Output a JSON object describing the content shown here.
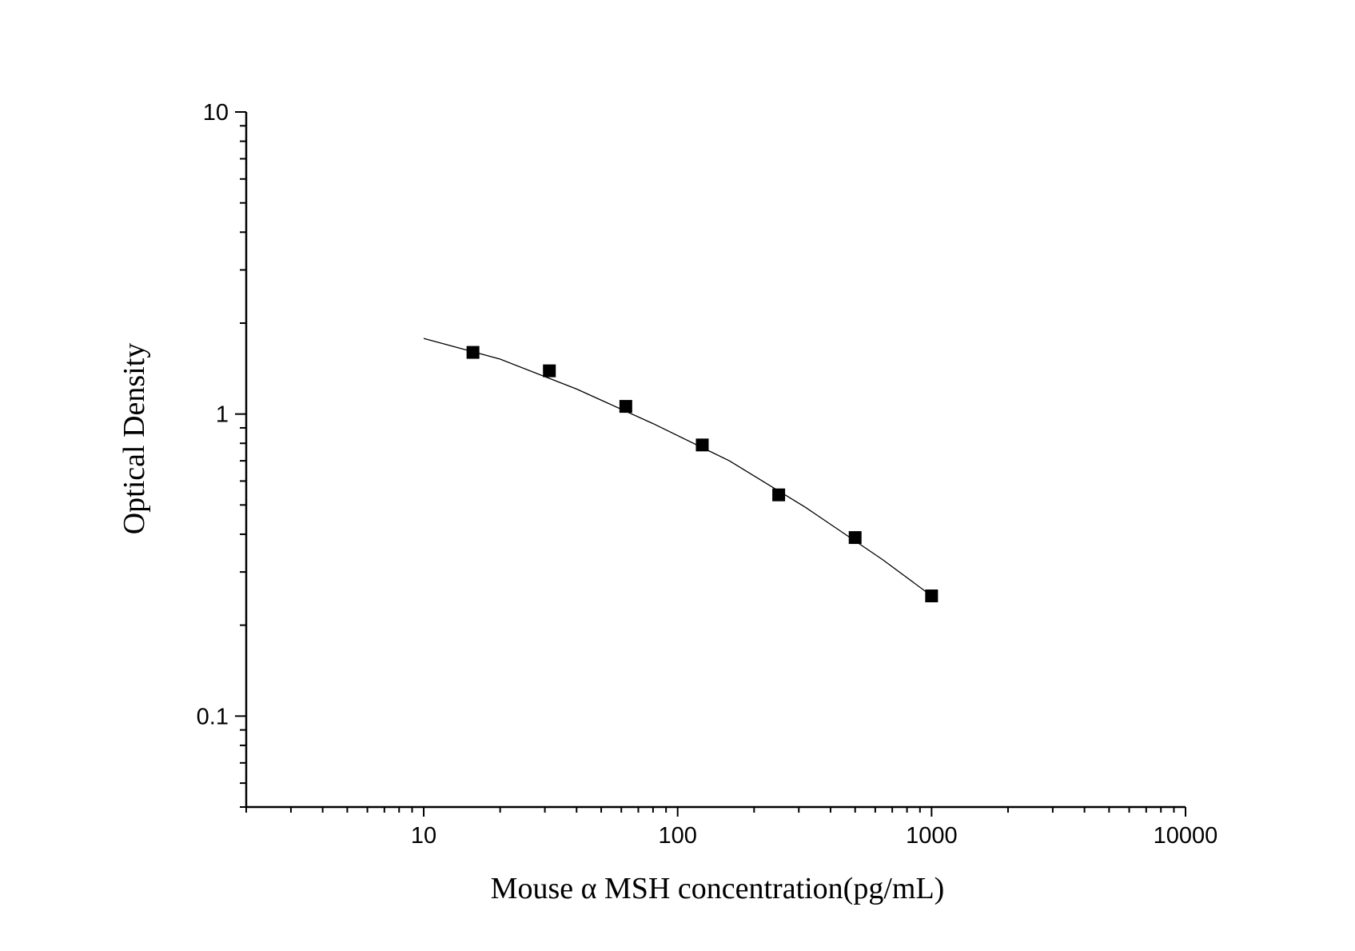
{
  "chart_data": {
    "type": "scatter",
    "x_scale": "log",
    "y_scale": "log",
    "xlim": [
      2,
      10000
    ],
    "ylim": [
      0.05,
      10
    ],
    "xlabel": "Mouse α  MSH concentration(pg/mL)",
    "ylabel": "Optical Density",
    "x_ticks": [
      "10",
      "100",
      "1000",
      "10000"
    ],
    "y_ticks": [
      "0.1",
      "1",
      "10"
    ],
    "grid": false,
    "legend": "none",
    "series": [
      {
        "marker": "square",
        "color": "#000000",
        "x": [
          15.63,
          31.25,
          62.5,
          125,
          250,
          500,
          1000
        ],
        "y": [
          1.6,
          1.39,
          1.06,
          0.79,
          0.54,
          0.39,
          0.25
        ]
      }
    ],
    "fit_curve": {
      "color": "#000000",
      "x": [
        10,
        20,
        40,
        80,
        160,
        320,
        640,
        1000
      ],
      "y": [
        1.78,
        1.52,
        1.21,
        0.93,
        0.7,
        0.49,
        0.33,
        0.25
      ]
    }
  }
}
